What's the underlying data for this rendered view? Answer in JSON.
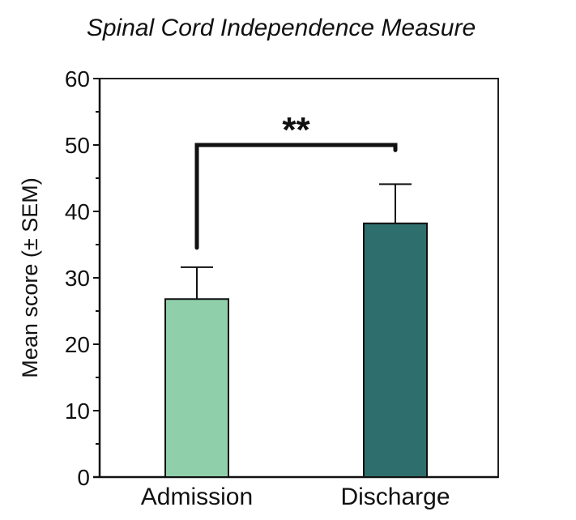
{
  "chart_data": {
    "type": "bar",
    "title": "Spinal Cord Independence Measure",
    "xlabel": "",
    "ylabel": "Mean score (± SEM)",
    "ylim": [
      0,
      60
    ],
    "yticks": [
      0,
      10,
      20,
      30,
      40,
      50,
      60
    ],
    "yticks_minor": [
      5,
      15,
      25,
      35,
      45,
      55
    ],
    "categories": [
      "Admission",
      "Discharge"
    ],
    "values": [
      26.8,
      38.2
    ],
    "errors": [
      4.8,
      5.9
    ],
    "colors": [
      "#8fcfaa",
      "#2e6e6c"
    ],
    "grid": false,
    "significance": {
      "label": "**",
      "between": [
        "Admission",
        "Discharge"
      ],
      "bracket_y": 50
    }
  }
}
